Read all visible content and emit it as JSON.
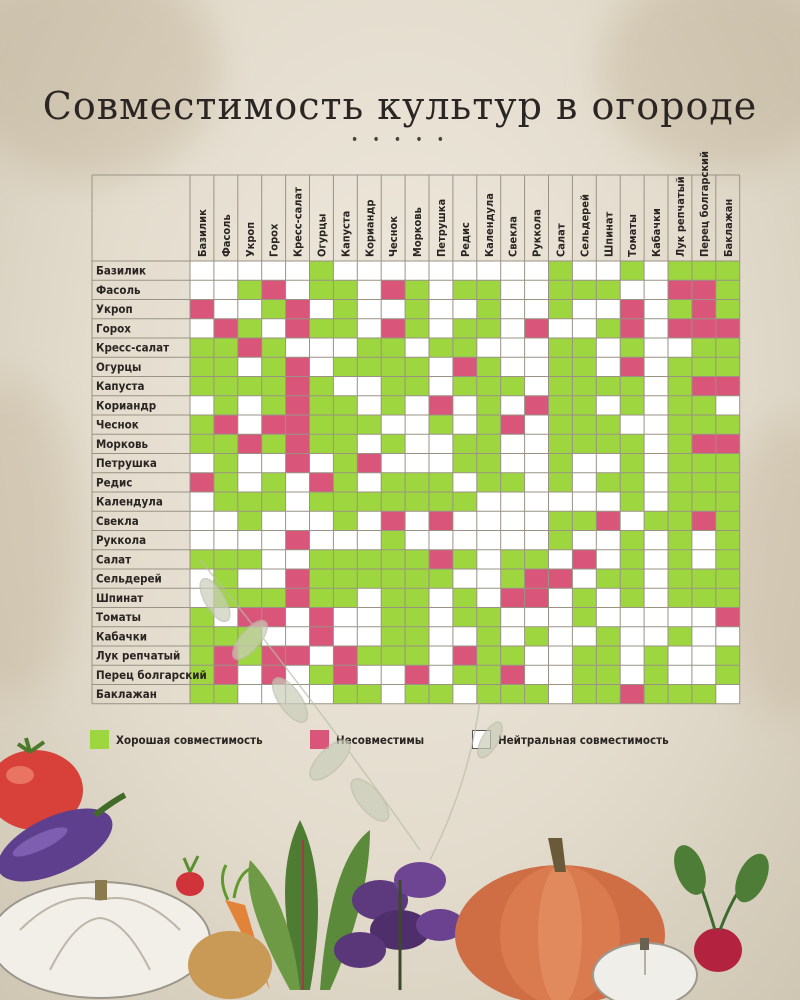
{
  "title": "Совместимость культур в огороде",
  "title_ornament": "• • • • •",
  "colors": {
    "good": "#9ed63f",
    "bad": "#d9557a",
    "neutral": "#ffffff",
    "grid": "#9a9385"
  },
  "legend": {
    "good": "Хорошая совместимость",
    "bad": "Несовместимы",
    "neutral": "Нейтральная совместимость"
  },
  "chart_data": {
    "type": "table",
    "columns": [
      "Базилик",
      "Фасоль",
      "Укроп",
      "Горох",
      "Кресс-салат",
      "Огурцы",
      "Капуста",
      "Кориандр",
      "Чеснок",
      "Морковь",
      "Петрушка",
      "Редис",
      "Календула",
      "Свекла",
      "Руккола",
      "Салат",
      "Сельдерей",
      "Шпинат",
      "Томаты",
      "Кабачки",
      "Лук репчатый",
      "Перец болгарский",
      "Баклажан"
    ],
    "rows": [
      "Базилик",
      "Фасоль",
      "Укроп",
      "Горох",
      "Кресс-салат",
      "Огурцы",
      "Капуста",
      "Кориандр",
      "Чеснок",
      "Морковь",
      "Петрушка",
      "Редис",
      "Календула",
      "Свекла",
      "Руккола",
      "Салат",
      "Сельдерей",
      "Шпинат",
      "Томаты",
      "Кабачки",
      "Лук репчатый",
      "Перец болгарский",
      "Баклажан"
    ],
    "legend_codes": {
      "G": "good",
      "B": "bad",
      "N": "neutral"
    },
    "matrix": [
      "NNNNNGNNNNNNNNNGNNGNGGG",
      "NNGBNGGNBGNGGNNGGGNNBBG",
      "BNNGBNGNNGNNGNNGNNBNGBG",
      "NBGNBGGNBGNGGNBNNGBNBBB",
      "GGBGNNNGGNGGNNNGGNGNNGG",
      "GGNGBNGGGGNBGNNGGNBNGGG",
      "GGGGBGNNGGNGGGNGGGGNGBB",
      "NGNGBGGNGNBNGNBGGNGNGGN",
      "GBNBBGGGNNGNGBNGGGNNGGG",
      "GGBGBGGNGNNGGNNGGGGNGBB",
      "NGNNBNGBNNNGGNNGNNGNGGG",
      "BGNGNBGNGGGNGGNGNGGNGGG",
      "NGGGNGGGGGGGNNNNNNGNGGG",
      "NNGNNNGNBNBNNNNGGBNGGBG",
      "NNNNBNNNGNNNNNNGNNGNGNG",
      "GGGNNGGGGGBGNGGNBNGNGNG",
      "NGNNBGGGGGGNNGBBNGGNGGG",
      "NGGGBGGNGGNGNBBNGNGNGGG",
      "GNBBNBNNGGNGGNNNGNNNNNB",
      "GGGNNBNNGGNNGNGNNGNNGNN",
      "GBGBBNBGGGNBGGNNGGNGNNG",
      "GBNBNGBNNBNGGBNNGGNGNNG",
      "GGNNNNGGNGGNGGGNGGBGGGN"
    ]
  }
}
